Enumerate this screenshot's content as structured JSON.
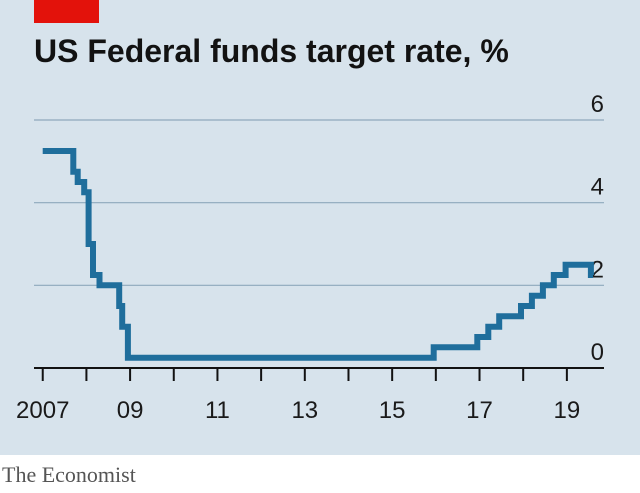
{
  "header": {
    "title": "US Federal funds target rate, %",
    "accent_color": "#e3120b"
  },
  "footer": {
    "credit": "The Economist"
  },
  "colors": {
    "background": "#d7e3ec",
    "line": "#1f6e9c",
    "grid": "#8ea8bd",
    "axis": "#121212"
  },
  "chart_data": {
    "type": "line",
    "step": true,
    "title": "US Federal funds target rate, %",
    "xlabel": "",
    "ylabel": "",
    "xlim": [
      2006.8,
      2019.85
    ],
    "ylim": [
      0,
      6
    ],
    "yticks": [
      0,
      2,
      4,
      6
    ],
    "xticks": [
      2007,
      2008,
      2009,
      2010,
      2011,
      2012,
      2013,
      2014,
      2015,
      2016,
      2017,
      2018,
      2019
    ],
    "xtick_labels": [
      {
        "value": 2007,
        "label": "2007"
      },
      {
        "value": 2009,
        "label": "09"
      },
      {
        "value": 2011,
        "label": "11"
      },
      {
        "value": 2013,
        "label": "13"
      },
      {
        "value": 2015,
        "label": "15"
      },
      {
        "value": 2017,
        "label": "17"
      },
      {
        "value": 2019,
        "label": "19"
      }
    ],
    "y_axis_side": "right",
    "grid": true,
    "series": [
      {
        "values": [
          {
            "x": 2007.0,
            "y": 5.25
          },
          {
            "x": 2007.7,
            "y": 4.75
          },
          {
            "x": 2007.8,
            "y": 4.5
          },
          {
            "x": 2007.95,
            "y": 4.25
          },
          {
            "x": 2008.05,
            "y": 3.0
          },
          {
            "x": 2008.15,
            "y": 2.25
          },
          {
            "x": 2008.3,
            "y": 2.0
          },
          {
            "x": 2008.75,
            "y": 1.5
          },
          {
            "x": 2008.82,
            "y": 1.0
          },
          {
            "x": 2008.95,
            "y": 0.25
          },
          {
            "x": 2015.95,
            "y": 0.5
          },
          {
            "x": 2016.95,
            "y": 0.75
          },
          {
            "x": 2017.2,
            "y": 1.0
          },
          {
            "x": 2017.45,
            "y": 1.25
          },
          {
            "x": 2017.95,
            "y": 1.5
          },
          {
            "x": 2018.2,
            "y": 1.75
          },
          {
            "x": 2018.45,
            "y": 2.0
          },
          {
            "x": 2018.7,
            "y": 2.25
          },
          {
            "x": 2018.97,
            "y": 2.5
          },
          {
            "x": 2019.55,
            "y": 2.25
          },
          {
            "x": 2019.6,
            "y": 2.25
          }
        ]
      }
    ]
  }
}
